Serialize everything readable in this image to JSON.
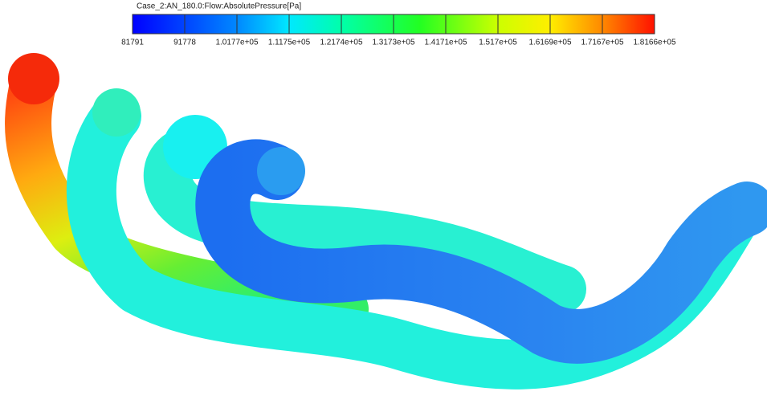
{
  "legend": {
    "title": "Case_2:AN_180.0:Flow:AbsolutePressure[Pa]",
    "ticks": [
      "81791",
      "91778",
      "1.0177e+05",
      "1.1175e+05",
      "1.2174e+05",
      "1.3173e+05",
      "1.4171e+05",
      "1.517e+05",
      "1.6169e+05",
      "1.7167e+05",
      "1.8166e+05"
    ]
  }
}
